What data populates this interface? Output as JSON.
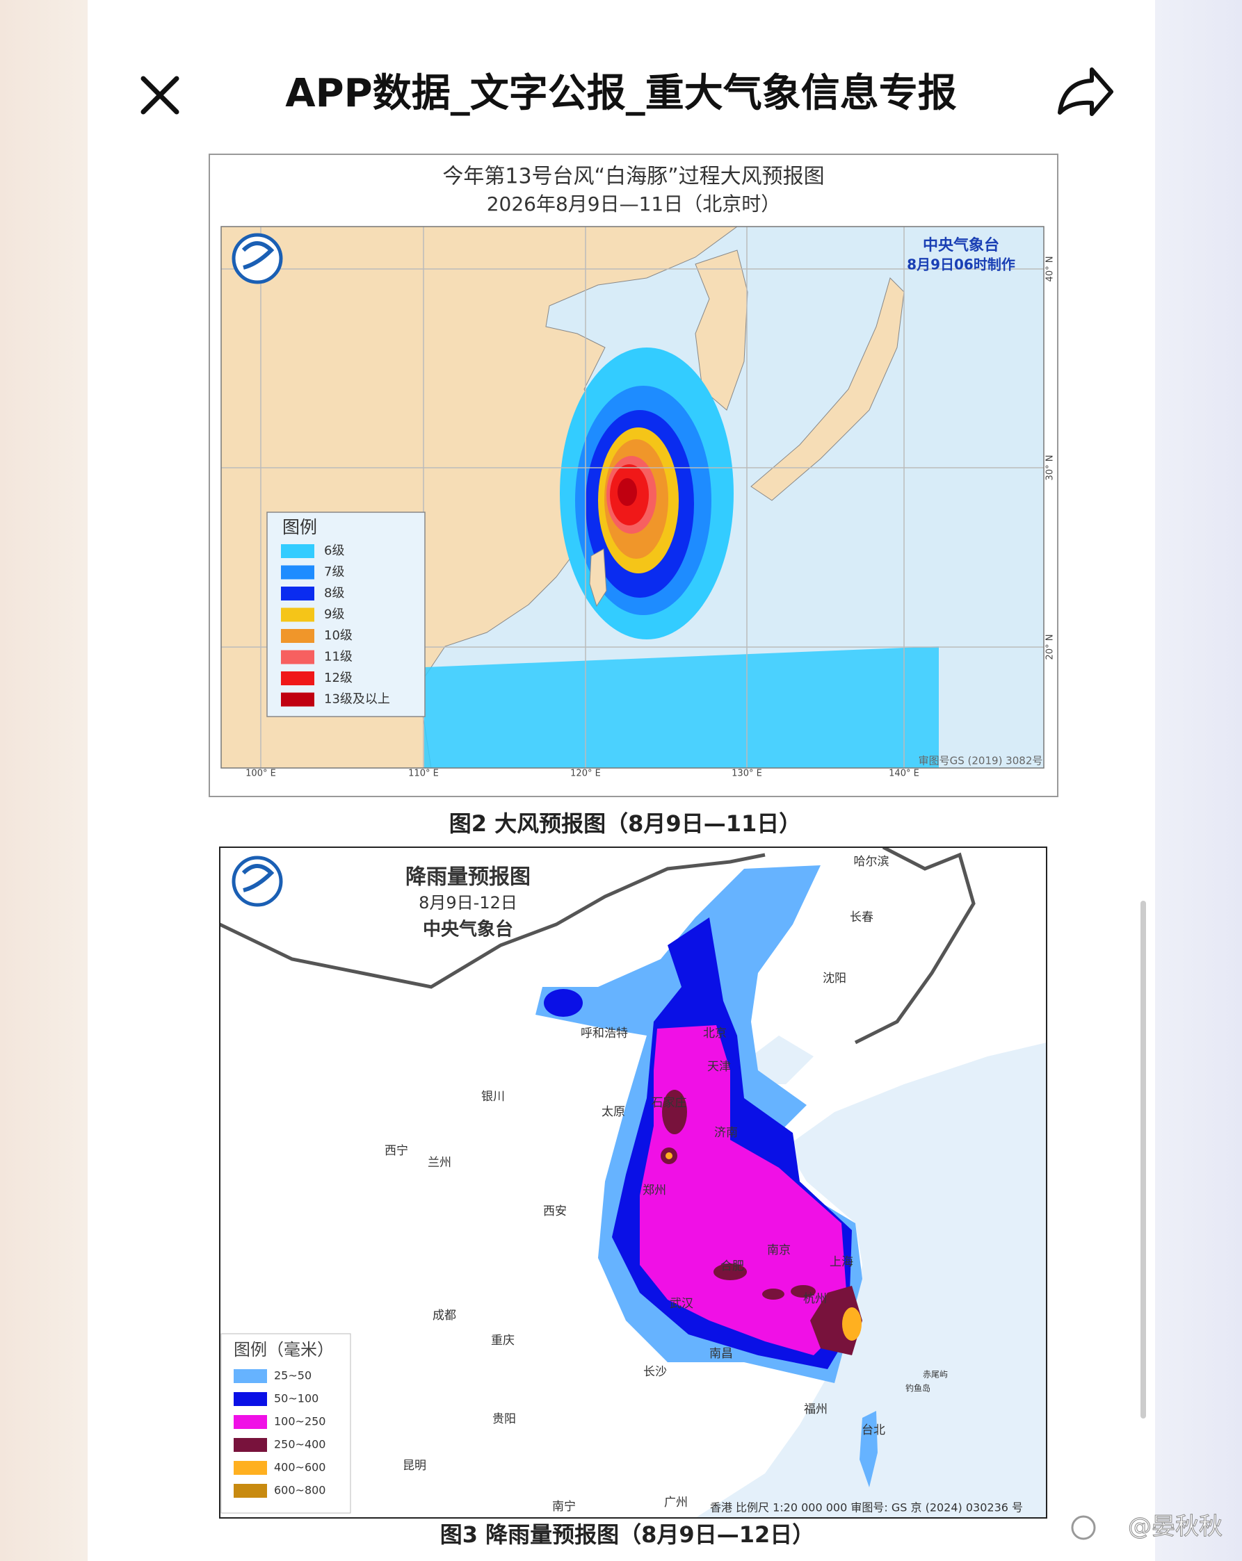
{
  "header": {
    "title": "APP数据_文字公报_重大气象信息专报"
  },
  "wind_map": {
    "title": "今年第13号台风“白海豚”过程大风预报图",
    "subtitle": "2026年8月9日—11日（北京时）",
    "agency": "中央气象台",
    "made": "8月9日06时制作",
    "legend_title": "图例",
    "legend": [
      {
        "label": "6级",
        "color": "#33ccff"
      },
      {
        "label": "7级",
        "color": "#1e8cff"
      },
      {
        "label": "8级",
        "color": "#0a2cf0"
      },
      {
        "label": "9级",
        "color": "#f5c518"
      },
      {
        "label": "10级",
        "color": "#f0962a"
      },
      {
        "label": "11级",
        "color": "#f76060"
      },
      {
        "label": "12级",
        "color": "#f01818"
      },
      {
        "label": "13级及以上",
        "color": "#c00010"
      }
    ],
    "lon_labels": [
      "100° E",
      "110° E",
      "120° E",
      "130° E",
      "140° E"
    ],
    "lat_labels": [
      "40° N",
      "30° N",
      "20° N"
    ],
    "copyright": "审图号GS (2019) 3082号",
    "caption": "图2 大风预报图（8月9日—11日）"
  },
  "rain_map": {
    "title": "降雨量预报图",
    "date": "8月9日-12日",
    "agency": "中央气象台",
    "legend_title": "图例（毫米）",
    "legend": [
      {
        "label": "25~50",
        "color": "#66b3ff"
      },
      {
        "label": "50~100",
        "color": "#0a10e6"
      },
      {
        "label": "100~250",
        "color": "#f010e6"
      },
      {
        "label": "250~400",
        "color": "#78123c"
      },
      {
        "label": "400~600",
        "color": "#ffb020"
      },
      {
        "label": "600~800",
        "color": "#c88a10"
      }
    ],
    "cities": [
      "哈尔滨",
      "长春",
      "沈阳",
      "呼和浩特",
      "北京",
      "天津",
      "银川",
      "太原",
      "石家庄",
      "济南",
      "西宁",
      "兰州",
      "郑州",
      "西安",
      "南京",
      "合肥",
      "上海",
      "杭州",
      "武汉",
      "成都",
      "重庆",
      "南昌",
      "长沙",
      "福州",
      "台北",
      "贵阳",
      "昆明",
      "南宁",
      "广州",
      "赤尾屿",
      "钓鱼岛"
    ],
    "footer": "香港 比例尺 1:20 000 000   审图号: GS 京 (2024) 030236 号",
    "caption": "图3 降雨量预报图（8月9日—12日）"
  },
  "watermark": "@晏秋秋"
}
